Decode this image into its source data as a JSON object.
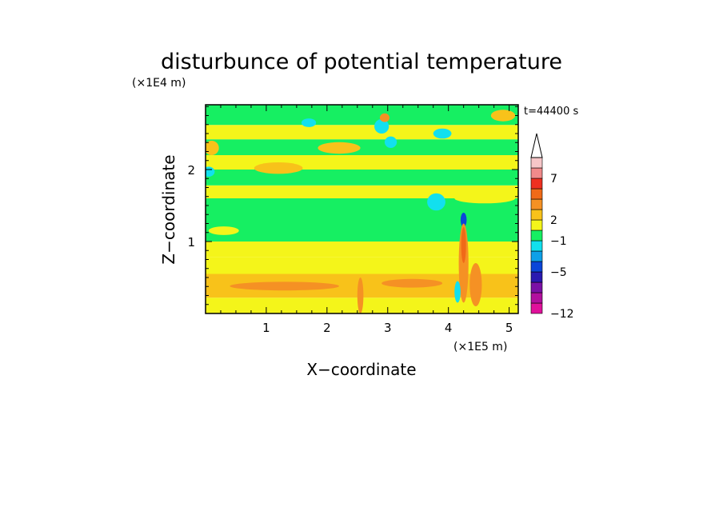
{
  "chart_data": {
    "type": "heatmap",
    "title": "disturbunce of potential temperature",
    "xlabel": "X−coordinate",
    "ylabel": "Z−coordinate",
    "x_scale_label": "(×1E5 m)",
    "y_scale_label": "(×1E4 m)",
    "time_label": "t=44400 s",
    "xlim": [
      0,
      5.15
    ],
    "ylim": [
      0,
      2.9
    ],
    "x_ticks": [
      1,
      2,
      3,
      4,
      5
    ],
    "y_ticks": [
      1,
      2
    ],
    "x_tick_labels": [
      "1",
      "2",
      "3",
      "4",
      "5"
    ],
    "y_tick_labels": [
      "1",
      "2"
    ],
    "colorbar": {
      "levels": [
        {
          "color": "#e0119b"
        },
        {
          "color": "#b2109e"
        },
        {
          "color": "#7a11a6"
        },
        {
          "color": "#2a1ab0"
        },
        {
          "color": "#0b46d8"
        },
        {
          "color": "#0ea0e8"
        },
        {
          "color": "#12e0ee"
        },
        {
          "color": "#16ef62"
        },
        {
          "color": "#f4f51a"
        },
        {
          "color": "#f8c21a"
        },
        {
          "color": "#f59124"
        },
        {
          "color": "#f06a18"
        },
        {
          "color": "#ee3020"
        },
        {
          "color": "#f08a8a"
        },
        {
          "color": "#f6c6c8"
        }
      ],
      "labels": [
        {
          "text": "−12",
          "level_index": 0
        },
        {
          "text": "−5",
          "level_index": 4
        },
        {
          "text": "−1",
          "level_index": 7
        },
        {
          "text": "2",
          "level_index": 9
        },
        {
          "text": "7",
          "level_index": 13
        }
      ]
    },
    "field_bands": [
      {
        "z0": 0.0,
        "z1": 0.22,
        "color": "#f4f51a"
      },
      {
        "z0": 0.22,
        "z1": 0.55,
        "color": "#f8c21a"
      },
      {
        "z0": 0.55,
        "z1": 0.78,
        "color": "#f4f51a"
      },
      {
        "z0": 0.78,
        "z1": 1.0,
        "color": "#f4f51a"
      },
      {
        "z0": 1.0,
        "z1": 1.35,
        "color": "#16ef62"
      },
      {
        "z0": 1.35,
        "z1": 1.6,
        "color": "#16ef62"
      },
      {
        "z0": 1.6,
        "z1": 1.78,
        "color": "#f4f51a"
      },
      {
        "z0": 1.78,
        "z1": 2.0,
        "color": "#16ef62"
      },
      {
        "z0": 2.0,
        "z1": 2.2,
        "color": "#f4f51a"
      },
      {
        "z0": 2.2,
        "z1": 2.42,
        "color": "#16ef62"
      },
      {
        "z0": 2.42,
        "z1": 2.62,
        "color": "#f4f51a"
      },
      {
        "z0": 2.62,
        "z1": 2.9,
        "color": "#16ef62"
      }
    ],
    "field_patches": [
      {
        "x": 0.1,
        "z": 2.3,
        "rx": 0.12,
        "rz": 0.1,
        "color": "#f8c21a"
      },
      {
        "x": 0.05,
        "z": 1.97,
        "rx": 0.1,
        "rz": 0.07,
        "color": "#12e0ee"
      },
      {
        "x": 1.2,
        "z": 2.02,
        "rx": 0.4,
        "rz": 0.08,
        "color": "#f8c21a"
      },
      {
        "x": 2.2,
        "z": 2.3,
        "rx": 0.35,
        "rz": 0.08,
        "color": "#f8c21a"
      },
      {
        "x": 2.9,
        "z": 2.6,
        "rx": 0.12,
        "rz": 0.1,
        "color": "#12e0ee"
      },
      {
        "x": 3.05,
        "z": 2.38,
        "rx": 0.1,
        "rz": 0.08,
        "color": "#12e0ee"
      },
      {
        "x": 3.9,
        "z": 2.5,
        "rx": 0.15,
        "rz": 0.07,
        "color": "#12e0ee"
      },
      {
        "x": 1.7,
        "z": 2.65,
        "rx": 0.12,
        "rz": 0.06,
        "color": "#12e0ee"
      },
      {
        "x": 2.95,
        "z": 2.72,
        "rx": 0.08,
        "rz": 0.06,
        "color": "#f59124"
      },
      {
        "x": 4.9,
        "z": 2.75,
        "rx": 0.2,
        "rz": 0.08,
        "color": "#f8c21a"
      },
      {
        "x": 4.5,
        "z": 2.1,
        "rx": 0.3,
        "rz": 0.07,
        "color": "#f4f51a"
      },
      {
        "x": 4.6,
        "z": 1.6,
        "rx": 0.5,
        "rz": 0.07,
        "color": "#f4f51a"
      },
      {
        "x": 3.8,
        "z": 1.55,
        "rx": 0.15,
        "rz": 0.12,
        "color": "#12e0ee"
      },
      {
        "x": 4.25,
        "z": 1.3,
        "rx": 0.05,
        "rz": 0.1,
        "color": "#0b46d8"
      },
      {
        "x": 1.3,
        "z": 0.38,
        "rx": 0.9,
        "rz": 0.06,
        "color": "#f59124"
      },
      {
        "x": 3.4,
        "z": 0.42,
        "rx": 0.5,
        "rz": 0.06,
        "color": "#f59124"
      },
      {
        "x": 4.25,
        "z": 0.7,
        "rx": 0.08,
        "rz": 0.55,
        "color": "#f59124"
      },
      {
        "x": 4.45,
        "z": 0.4,
        "rx": 0.1,
        "rz": 0.3,
        "color": "#f59124"
      },
      {
        "x": 4.25,
        "z": 0.95,
        "rx": 0.04,
        "rz": 0.25,
        "color": "#f06a18"
      },
      {
        "x": 4.15,
        "z": 0.3,
        "rx": 0.05,
        "rz": 0.15,
        "color": "#12e0ee"
      },
      {
        "x": 2.55,
        "z": 0.25,
        "rx": 0.05,
        "rz": 0.25,
        "color": "#f59124"
      },
      {
        "x": 0.3,
        "z": 1.15,
        "rx": 0.25,
        "rz": 0.06,
        "color": "#f4f51a"
      }
    ]
  }
}
